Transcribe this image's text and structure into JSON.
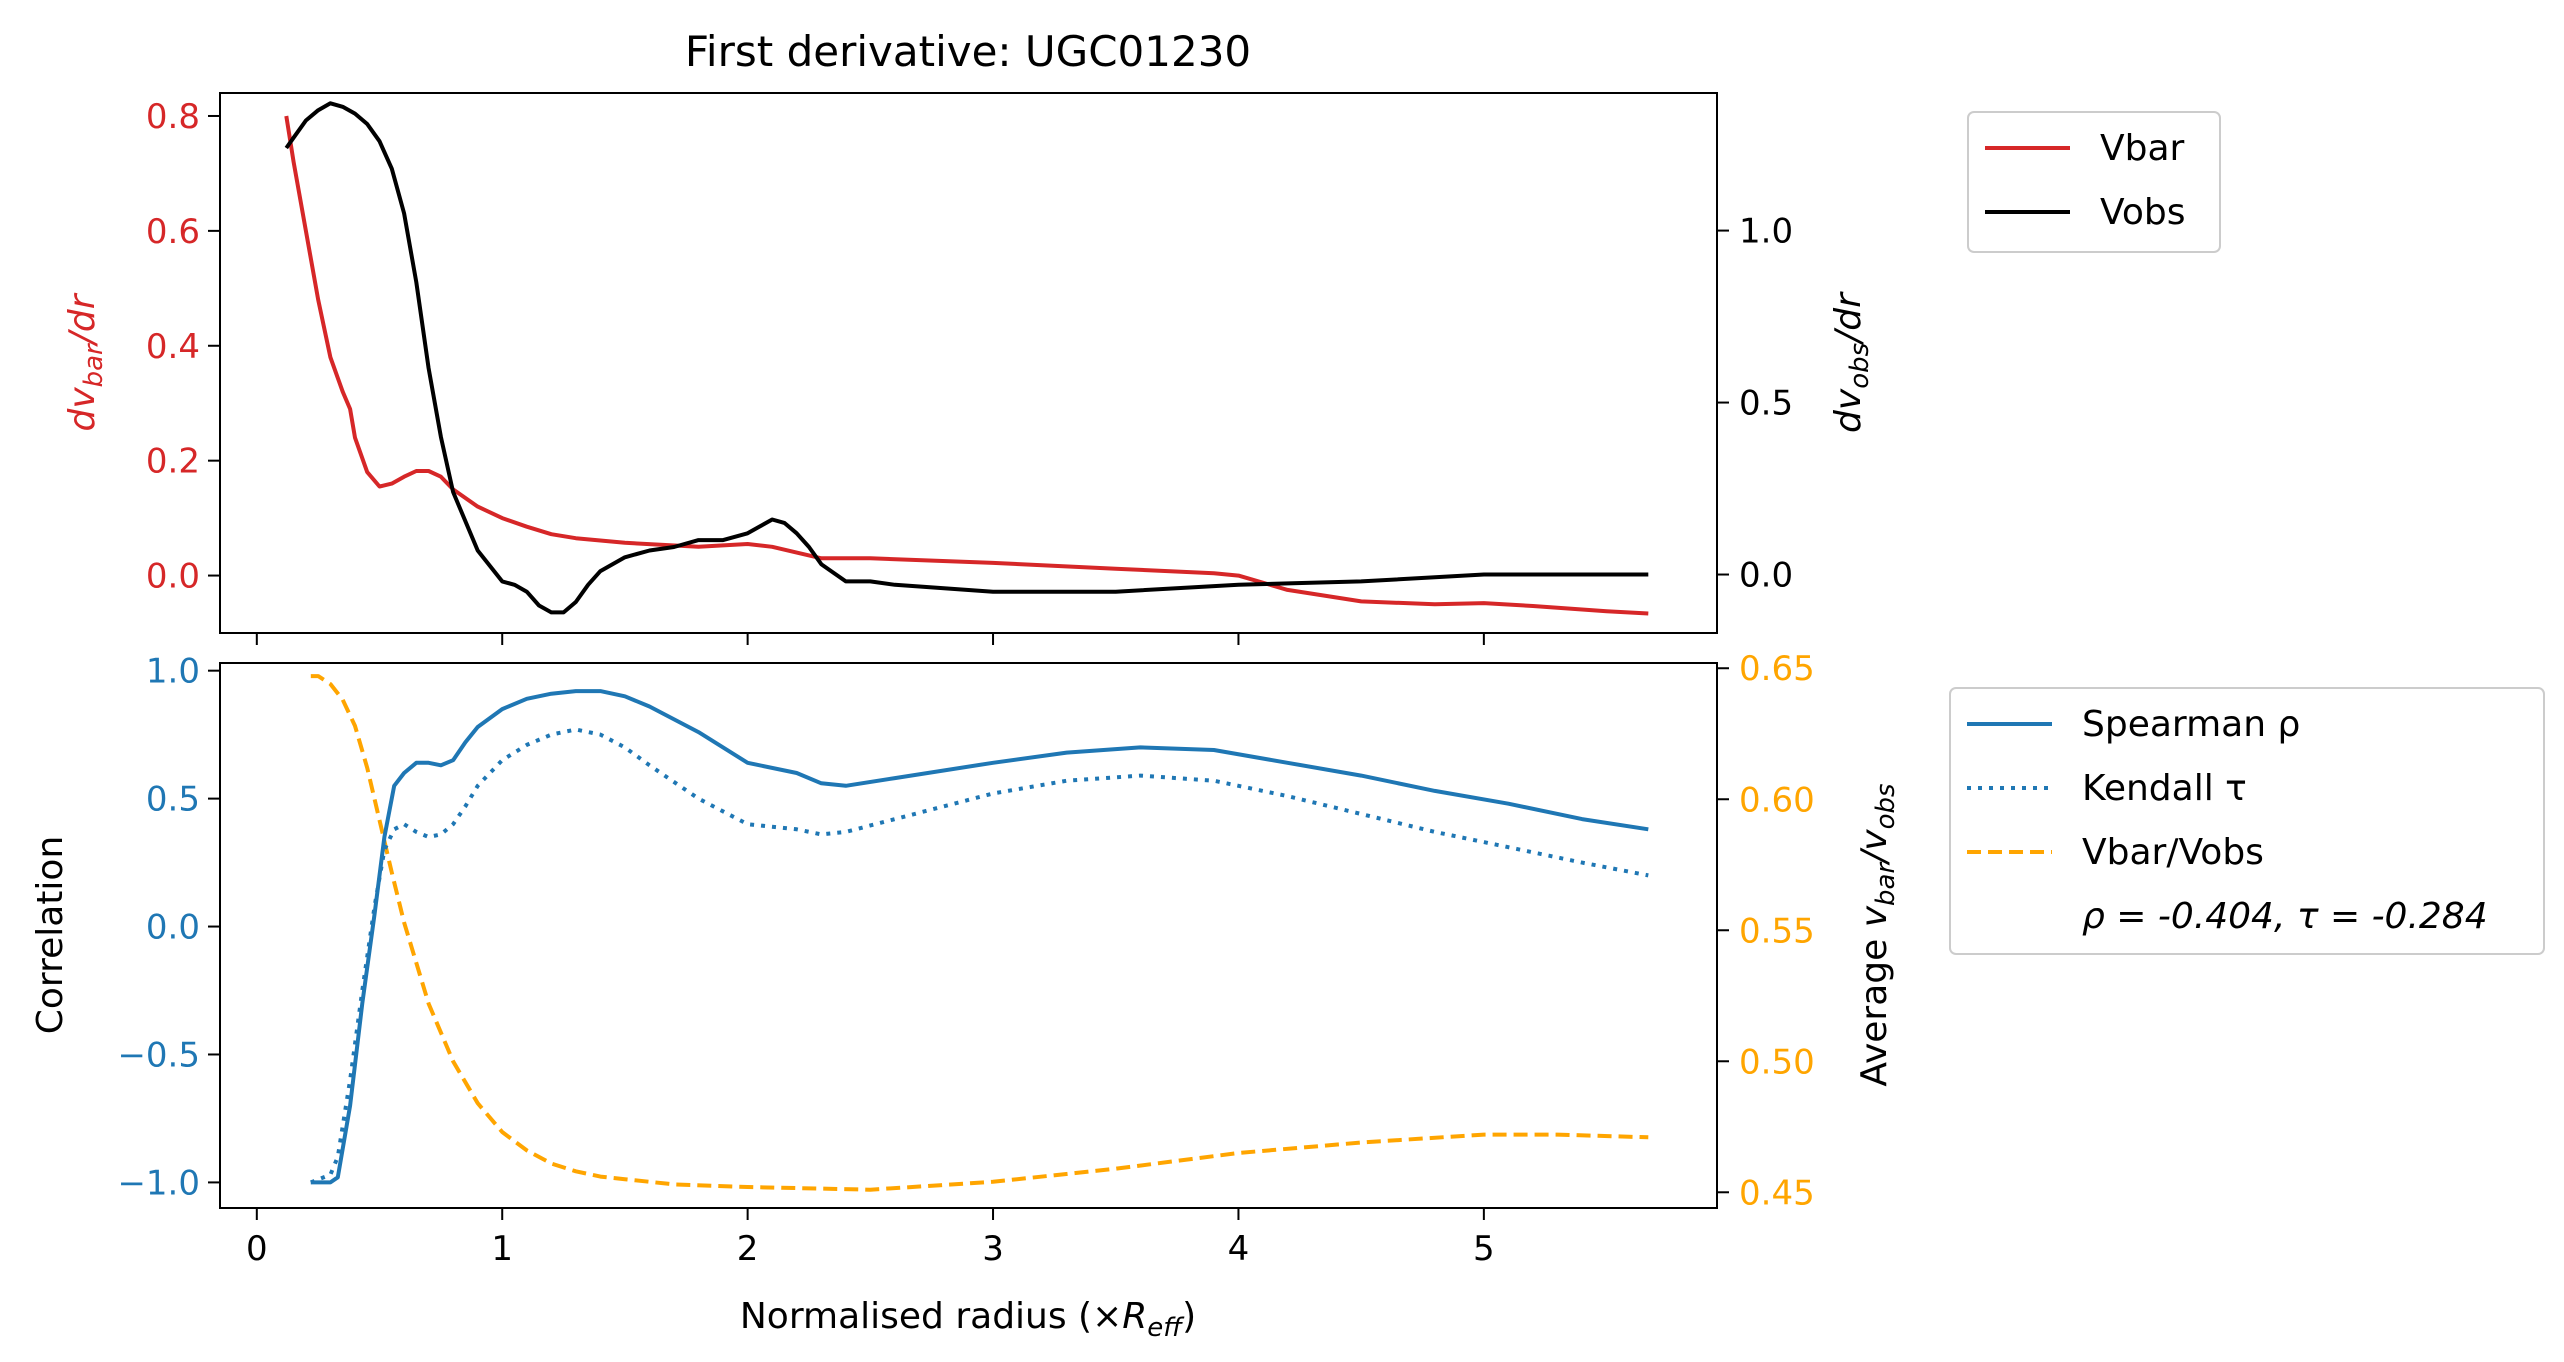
{
  "chart_data": [
    {
      "type": "line",
      "title": "First derivative: UGC01230",
      "xlabel": "",
      "ylabel_left": "dv_bar/dr",
      "ylabel_right": "dv_obs/dr",
      "xlim": [
        -0.15,
        5.95
      ],
      "ylim_left": [
        -0.1,
        0.84
      ],
      "ylim_right": [
        -0.17,
        1.4
      ],
      "ylabel_left_parts": {
        "main": "dv",
        "sub": "bar",
        "tail": "/dr"
      },
      "ylabel_right_parts": {
        "main": "dv",
        "sub": "obs",
        "tail": "/dr"
      },
      "yticks_left": [
        0.0,
        0.2,
        0.4,
        0.6,
        0.8
      ],
      "yticks_left_labels": [
        "0.0",
        "0.2",
        "0.4",
        "0.6",
        "0.8"
      ],
      "yticks_right": [
        0.0,
        0.5,
        1.0
      ],
      "yticks_right_labels": [
        "0.0",
        "0.5",
        "1.0"
      ],
      "legend": {
        "placement": "outside-right"
      },
      "colors": {
        "vbar": "#d62728",
        "vobs": "#000000"
      },
      "series": [
        {
          "name": "Vbar",
          "axis": "left",
          "color": "#d62728",
          "x": [
            0.12,
            0.15,
            0.2,
            0.25,
            0.3,
            0.35,
            0.38,
            0.4,
            0.45,
            0.5,
            0.55,
            0.6,
            0.65,
            0.7,
            0.75,
            0.8,
            0.9,
            1.0,
            1.1,
            1.2,
            1.3,
            1.5,
            1.8,
            2.0,
            2.1,
            2.2,
            2.3,
            2.5,
            3.0,
            3.5,
            3.9,
            4.0,
            4.2,
            4.5,
            4.8,
            5.0,
            5.2,
            5.5,
            5.67
          ],
          "y": [
            0.8,
            0.72,
            0.6,
            0.48,
            0.38,
            0.32,
            0.29,
            0.24,
            0.18,
            0.155,
            0.16,
            0.172,
            0.182,
            0.182,
            0.172,
            0.15,
            0.12,
            0.1,
            0.085,
            0.072,
            0.065,
            0.057,
            0.05,
            0.055,
            0.05,
            0.04,
            0.03,
            0.03,
            0.022,
            0.012,
            0.004,
            0.0,
            -0.025,
            -0.045,
            -0.05,
            -0.048,
            -0.053,
            -0.062,
            -0.066
          ]
        },
        {
          "name": "Vobs",
          "axis": "right",
          "color": "#000000",
          "x": [
            0.12,
            0.15,
            0.2,
            0.25,
            0.3,
            0.35,
            0.4,
            0.45,
            0.5,
            0.55,
            0.6,
            0.65,
            0.7,
            0.75,
            0.8,
            0.9,
            1.0,
            1.05,
            1.1,
            1.15,
            1.2,
            1.25,
            1.3,
            1.35,
            1.4,
            1.5,
            1.6,
            1.7,
            1.8,
            1.9,
            2.0,
            2.05,
            2.1,
            2.15,
            2.2,
            2.25,
            2.3,
            2.4,
            2.5,
            2.6,
            3.0,
            3.5,
            4.0,
            4.5,
            5.0,
            5.67
          ],
          "y": [
            1.24,
            1.27,
            1.32,
            1.35,
            1.37,
            1.36,
            1.34,
            1.31,
            1.26,
            1.18,
            1.05,
            0.85,
            0.6,
            0.4,
            0.24,
            0.07,
            -0.02,
            -0.03,
            -0.05,
            -0.09,
            -0.11,
            -0.11,
            -0.08,
            -0.03,
            0.01,
            0.05,
            0.07,
            0.08,
            0.1,
            0.1,
            0.12,
            0.14,
            0.16,
            0.15,
            0.12,
            0.08,
            0.03,
            -0.02,
            -0.02,
            -0.03,
            -0.05,
            -0.05,
            -0.03,
            -0.02,
            0.0,
            0.0
          ]
        }
      ]
    },
    {
      "type": "line",
      "title": "",
      "xlabel": "Normalised radius (×R_eff)",
      "xlabel_parts": {
        "main": "Normalised radius (×",
        "italic": "R",
        "sub": "eff",
        "tail": ")"
      },
      "ylabel_left": "Correlation",
      "ylabel_right": "Average v_bar/v_obs",
      "ylabel_right_parts": {
        "main": "Average ",
        "v1": "v",
        "sub1": "bar",
        "slash": "/",
        "v2": "v",
        "sub2": "obs"
      },
      "xlim": [
        -0.15,
        5.95
      ],
      "ylim_left": [
        -1.1,
        1.03
      ],
      "ylim_right": [
        0.444,
        0.652
      ],
      "xticks": [
        0,
        1,
        2,
        3,
        4,
        5
      ],
      "xticks_labels": [
        "0",
        "1",
        "2",
        "3",
        "4",
        "5"
      ],
      "yticks_left": [
        -1.0,
        -0.5,
        0.0,
        0.5,
        1.0
      ],
      "yticks_left_labels": [
        "−1.0",
        "−0.5",
        "0.0",
        "0.5",
        "1.0"
      ],
      "yticks_right": [
        0.45,
        0.5,
        0.55,
        0.6,
        0.65
      ],
      "yticks_right_labels": [
        "0.45",
        "0.50",
        "0.55",
        "0.60",
        "0.65"
      ],
      "legend": {
        "placement": "outside-right",
        "stats_text": "ρ = -0.404, τ = -0.284"
      },
      "colors": {
        "spearman": "#1f77b4",
        "kendall": "#1f77b4",
        "ratio": "#ffa500"
      },
      "series": [
        {
          "name": "Spearman ρ",
          "axis": "left",
          "style": "solid",
          "color": "#1f77b4",
          "x": [
            0.22,
            0.3,
            0.33,
            0.38,
            0.43,
            0.48,
            0.52,
            0.56,
            0.6,
            0.65,
            0.7,
            0.75,
            0.8,
            0.85,
            0.9,
            1.0,
            1.1,
            1.2,
            1.3,
            1.4,
            1.5,
            1.6,
            1.8,
            2.0,
            2.2,
            2.3,
            2.4,
            2.6,
            3.0,
            3.3,
            3.6,
            3.9,
            4.2,
            4.5,
            4.8,
            5.1,
            5.4,
            5.67
          ],
          "y": [
            -1.0,
            -1.0,
            -0.98,
            -0.7,
            -0.3,
            0.05,
            0.35,
            0.55,
            0.6,
            0.64,
            0.64,
            0.63,
            0.65,
            0.72,
            0.78,
            0.85,
            0.89,
            0.91,
            0.92,
            0.92,
            0.9,
            0.86,
            0.76,
            0.64,
            0.6,
            0.56,
            0.55,
            0.58,
            0.64,
            0.68,
            0.7,
            0.69,
            0.64,
            0.59,
            0.53,
            0.48,
            0.42,
            0.38
          ]
        },
        {
          "name": "Kendall τ",
          "axis": "left",
          "style": "dotted",
          "color": "#1f77b4",
          "x": [
            0.22,
            0.3,
            0.33,
            0.38,
            0.43,
            0.48,
            0.52,
            0.56,
            0.6,
            0.65,
            0.7,
            0.75,
            0.8,
            0.85,
            0.9,
            1.0,
            1.1,
            1.2,
            1.3,
            1.4,
            1.5,
            1.6,
            1.8,
            2.0,
            2.2,
            2.3,
            2.4,
            2.6,
            3.0,
            3.3,
            3.6,
            3.9,
            4.2,
            4.5,
            4.8,
            5.1,
            5.4,
            5.67
          ],
          "y": [
            -1.0,
            -0.97,
            -0.9,
            -0.6,
            -0.25,
            0.08,
            0.3,
            0.38,
            0.4,
            0.37,
            0.35,
            0.36,
            0.4,
            0.47,
            0.55,
            0.65,
            0.71,
            0.75,
            0.77,
            0.75,
            0.7,
            0.63,
            0.5,
            0.4,
            0.38,
            0.36,
            0.37,
            0.42,
            0.52,
            0.57,
            0.59,
            0.57,
            0.51,
            0.44,
            0.37,
            0.31,
            0.25,
            0.2
          ]
        },
        {
          "name": "Vbar/Vobs",
          "axis": "right",
          "style": "dashed",
          "color": "#ffa500",
          "x": [
            0.22,
            0.25,
            0.3,
            0.35,
            0.4,
            0.45,
            0.5,
            0.55,
            0.6,
            0.7,
            0.8,
            0.9,
            1.0,
            1.1,
            1.2,
            1.3,
            1.4,
            1.5,
            1.7,
            2.0,
            2.5,
            3.0,
            3.5,
            4.0,
            4.5,
            5.0,
            5.3,
            5.67
          ],
          "y": [
            0.647,
            0.647,
            0.644,
            0.638,
            0.628,
            0.612,
            0.592,
            0.572,
            0.553,
            0.522,
            0.5,
            0.484,
            0.473,
            0.466,
            0.461,
            0.458,
            0.456,
            0.455,
            0.453,
            0.452,
            0.451,
            0.454,
            0.459,
            0.465,
            0.469,
            0.472,
            0.472,
            0.471
          ]
        }
      ]
    }
  ]
}
